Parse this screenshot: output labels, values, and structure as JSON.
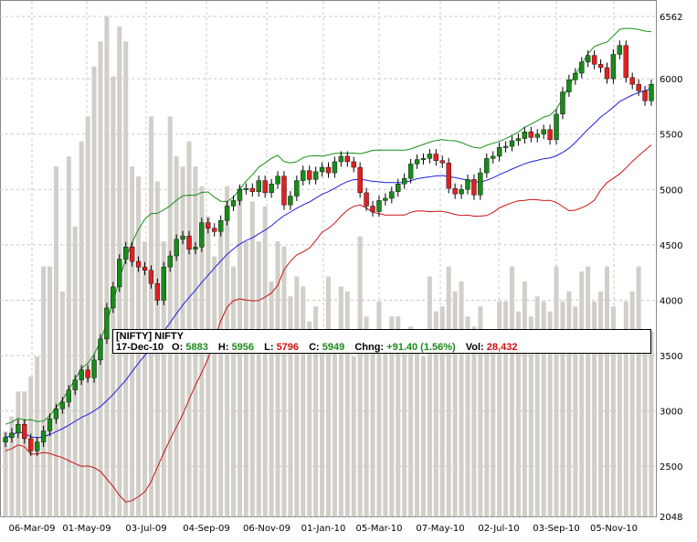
{
  "chart_data": {
    "type": "candlestick",
    "symbol_label": "[NIFTY] NIFTY",
    "x_tick_labels": [
      "06-Mar-09",
      "01-May-09",
      "03-Jul-09",
      "04-Sep-09",
      "06-Nov-09",
      "01-Jan-10",
      "05-Mar-10",
      "07-May-10",
      "02-Jul-10",
      "03-Sep-10",
      "05-Nov-10"
    ],
    "y_tick_labels": [
      6562,
      6000,
      5500,
      5000,
      4500,
      4000,
      3500,
      3000,
      2500,
      2048
    ],
    "ylim": [
      2048,
      6562
    ],
    "grid": true,
    "ohlc_close": [
      2760,
      2800,
      2880,
      2750,
      2640,
      2720,
      2820,
      2930,
      3020,
      3080,
      3190,
      3280,
      3370,
      3300,
      3460,
      3650,
      3930,
      4120,
      4370,
      4480,
      4350,
      4300,
      4270,
      4150,
      4000,
      4300,
      4400,
      4550,
      4580,
      4460,
      4480,
      4700,
      4650,
      4620,
      4720,
      4850,
      4900,
      5000,
      5010,
      4980,
      5080,
      4970,
      5050,
      5120,
      4860,
      4940,
      5080,
      5170,
      5090,
      5160,
      5200,
      5150,
      5250,
      5300,
      5250,
      5200,
      4970,
      4850,
      4800,
      4900,
      4920,
      4980,
      5050,
      5100,
      5230,
      5270,
      5280,
      5320,
      5260,
      5240,
      5010,
      4960,
      5000,
      5090,
      4950,
      5150,
      5280,
      5300,
      5380,
      5390,
      5440,
      5460,
      5520,
      5470,
      5500,
      5540,
      5450,
      5680,
      5880,
      5990,
      6050,
      6150,
      6210,
      6130,
      6100,
      6000,
      6220,
      6300,
      6010,
      5950,
      5890,
      5800,
      5950
    ],
    "volume_fraction": [
      0.17,
      0.2,
      0.25,
      0.25,
      0.28,
      0.32,
      0.5,
      0.5,
      0.7,
      0.45,
      0.72,
      0.58,
      0.75,
      0.8,
      0.9,
      0.95,
      1.0,
      0.88,
      0.98,
      0.95,
      0.7,
      0.68,
      0.55,
      0.8,
      0.67,
      0.55,
      0.8,
      0.72,
      0.7,
      0.75,
      0.7,
      0.66,
      0.6,
      0.52,
      0.58,
      0.66,
      0.5,
      0.66,
      0.55,
      0.63,
      0.55,
      0.62,
      0.47,
      0.55,
      0.54,
      0.44,
      0.48,
      0.46,
      0.39,
      0.42,
      0.37,
      0.48,
      0.36,
      0.46,
      0.45,
      0.32,
      0.56,
      0.4,
      0.34,
      0.43,
      0.37,
      0.4,
      0.4,
      0.36,
      0.38,
      0.33,
      0.32,
      0.48,
      0.41,
      0.42,
      0.5,
      0.45,
      0.47,
      0.4,
      0.38,
      0.42,
      0.37,
      0.36,
      0.43,
      0.43,
      0.5,
      0.41,
      0.47,
      0.4,
      0.44,
      0.43,
      0.41,
      0.5,
      0.43,
      0.45,
      0.42,
      0.49,
      0.5,
      0.43,
      0.45,
      0.5,
      0.42,
      0.35,
      0.43,
      0.45,
      0.5,
      0.35,
      0.37
    ],
    "info_box": {
      "title": "[NIFTY] NIFTY",
      "date": "17-Dec-10",
      "open_label": "O:",
      "open": "5883",
      "high_label": "H:",
      "high": "5956",
      "low_label": "L:",
      "low": "5796",
      "close_label": "C:",
      "close": "5949",
      "change_label": "Chng:",
      "change": "+91.40 (1.56%)",
      "volume_label": "Vol:",
      "volume": "28,432"
    },
    "colors": {
      "up": "#1b8a1b",
      "down": "#e02020",
      "upper_band": "#1a8f1a",
      "middle_band": "#1f1fe0",
      "lower_band": "#c81414",
      "volume": "#d2cec8",
      "grid": "#c8c8c8"
    }
  }
}
